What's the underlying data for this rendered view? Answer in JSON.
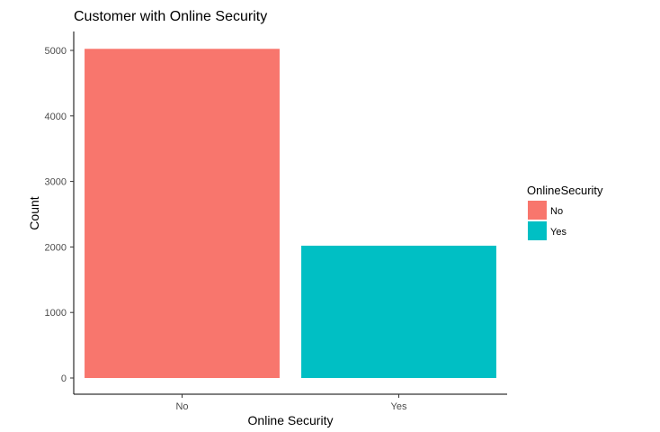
{
  "chart_data": {
    "type": "bar",
    "title": "Customer with Online Security",
    "xlabel": "Online Security",
    "ylabel": "Count",
    "categories": [
      "No",
      "Yes"
    ],
    "values": [
      5024,
      2019
    ],
    "ylim": [
      0,
      5100
    ],
    "yticks": [
      0,
      1000,
      2000,
      3000,
      4000,
      5000
    ],
    "colors": [
      "#F8766D",
      "#00BFC4"
    ],
    "grid": false,
    "legend": {
      "title": "OnlineSecurity",
      "items": [
        "No",
        "Yes"
      ],
      "placement": "right"
    }
  }
}
